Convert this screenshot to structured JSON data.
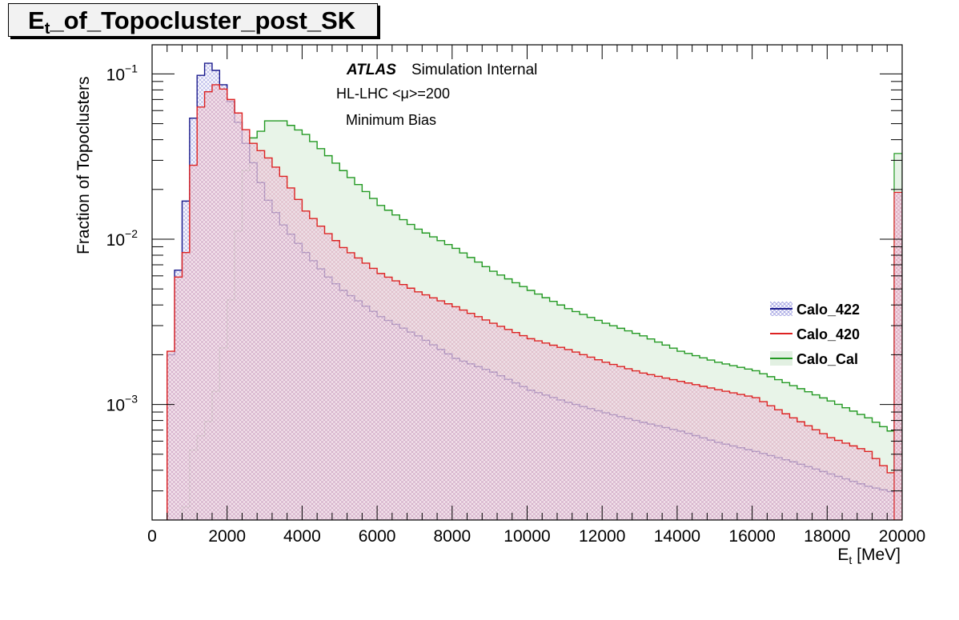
{
  "title": {
    "main": "E",
    "sub": "t",
    "rest": "_of_Topocluster_post_SK"
  },
  "labels": {
    "atlas": "ATLAS",
    "simulation": "Simulation Internal",
    "line2": "HL-LHC <μ>=200",
    "line3": "Minimum Bias",
    "ylabel": "Fraction of Topoclusters",
    "xlabel_main": "E",
    "xlabel_sub": "t",
    "xlabel_rest": " [MeV]"
  },
  "chart_data": {
    "type": "line",
    "title": "Et_of_Topocluster_post_SK",
    "xlabel": "Et [MeV]",
    "ylabel": "Fraction of Topoclusters",
    "xlim": [
      0,
      20000
    ],
    "ylim": [
      0.0002,
      0.15
    ],
    "yscale": "log",
    "x_ticks": [
      "0",
      "2000",
      "4000",
      "6000",
      "8000",
      "10000",
      "12000",
      "14000",
      "16000",
      "18000",
      "20000"
    ],
    "y_ticks": [
      {
        "value": 0.1,
        "base": "10",
        "exp": "−1"
      },
      {
        "value": 0.01,
        "base": "10",
        "exp": "−2"
      },
      {
        "value": 0.001,
        "base": "10",
        "exp": "−3"
      }
    ],
    "bin_width": 200,
    "grid": false,
    "legend_position": "right",
    "series": [
      {
        "name": "Calo_422",
        "color": "#1a1a8c",
        "fill": "#9999dd",
        "pattern": "hatch",
        "points": [
          [
            0,
            1e-05
          ],
          [
            400,
            0.002
          ],
          [
            600,
            0.0065
          ],
          [
            800,
            0.017
          ],
          [
            1000,
            0.054
          ],
          [
            1200,
            0.098
          ],
          [
            1400,
            0.116
          ],
          [
            1600,
            0.105
          ],
          [
            1800,
            0.086
          ],
          [
            2000,
            0.068
          ],
          [
            2200,
            0.051
          ],
          [
            2400,
            0.038
          ],
          [
            2600,
            0.029
          ],
          [
            2800,
            0.022
          ],
          [
            3000,
            0.0172
          ],
          [
            3400,
            0.0122
          ],
          [
            4000,
            0.0083
          ],
          [
            4600,
            0.0059
          ],
          [
            5000,
            0.0049
          ],
          [
            6000,
            0.0034
          ],
          [
            7000,
            0.0026
          ],
          [
            8000,
            0.0019
          ],
          [
            9000,
            0.00157
          ],
          [
            10000,
            0.00122
          ],
          [
            11000,
            0.00103
          ],
          [
            12000,
            0.00089
          ],
          [
            13000,
            0.00078
          ],
          [
            14000,
            0.00069
          ],
          [
            15000,
            0.00059
          ],
          [
            16000,
            0.00052
          ],
          [
            17000,
            0.00045
          ],
          [
            18000,
            0.00038
          ],
          [
            19000,
            0.00032
          ],
          [
            19800,
            0.00029
          ]
        ]
      },
      {
        "name": "Calo_420",
        "color": "#dd2222",
        "fill": "#f3bcd0",
        "pattern": "cross",
        "points": [
          [
            0,
            1e-05
          ],
          [
            400,
            0.0021
          ],
          [
            600,
            0.0059
          ],
          [
            800,
            0.0083
          ],
          [
            1000,
            0.028
          ],
          [
            1200,
            0.063
          ],
          [
            1400,
            0.078
          ],
          [
            1600,
            0.086
          ],
          [
            1800,
            0.081
          ],
          [
            2000,
            0.07
          ],
          [
            2200,
            0.058
          ],
          [
            2400,
            0.046
          ],
          [
            2600,
            0.038
          ],
          [
            3000,
            0.031
          ],
          [
            3400,
            0.024
          ],
          [
            4000,
            0.0148
          ],
          [
            4600,
            0.0108
          ],
          [
            5000,
            0.0089
          ],
          [
            6000,
            0.0062
          ],
          [
            7000,
            0.0048
          ],
          [
            8000,
            0.0039
          ],
          [
            9000,
            0.0031
          ],
          [
            10000,
            0.0025
          ],
          [
            11000,
            0.00215
          ],
          [
            12000,
            0.0018
          ],
          [
            13000,
            0.00155
          ],
          [
            14000,
            0.00138
          ],
          [
            15000,
            0.00123
          ],
          [
            16000,
            0.0011
          ],
          [
            17000,
            0.00083
          ],
          [
            18000,
            0.00063
          ],
          [
            19000,
            0.00052
          ],
          [
            19800,
            0.00035
          ]
        ]
      },
      {
        "name": "Calo_Cal",
        "color": "#229922",
        "fill": "#e6f3e6",
        "pattern": "solid",
        "points": [
          [
            0,
            1e-05
          ],
          [
            1000,
            0.00053
          ],
          [
            1400,
            0.00079
          ],
          [
            1600,
            0.0012
          ],
          [
            1800,
            0.0022
          ],
          [
            2000,
            0.0043
          ],
          [
            2200,
            0.0112
          ],
          [
            2400,
            0.026
          ],
          [
            2600,
            0.041
          ],
          [
            2800,
            0.045
          ],
          [
            3000,
            0.052
          ],
          [
            3400,
            0.052
          ],
          [
            4000,
            0.043
          ],
          [
            4600,
            0.032
          ],
          [
            5000,
            0.026
          ],
          [
            6000,
            0.016
          ],
          [
            7000,
            0.0115
          ],
          [
            8000,
            0.0088
          ],
          [
            9000,
            0.0064
          ],
          [
            10000,
            0.0049
          ],
          [
            11000,
            0.0038
          ],
          [
            12000,
            0.0031
          ],
          [
            13000,
            0.0026
          ],
          [
            14000,
            0.0021
          ],
          [
            15000,
            0.0018
          ],
          [
            16000,
            0.0016
          ],
          [
            17000,
            0.0013
          ],
          [
            18000,
            0.00105
          ],
          [
            19000,
            0.00083
          ],
          [
            19800,
            0.00065
          ]
        ]
      }
    ],
    "overflow_bin": {
      "x": 20000,
      "values": {
        "Calo_422": 0.0081,
        "Calo_420": 0.0192,
        "Calo_Cal": 0.033
      }
    }
  }
}
